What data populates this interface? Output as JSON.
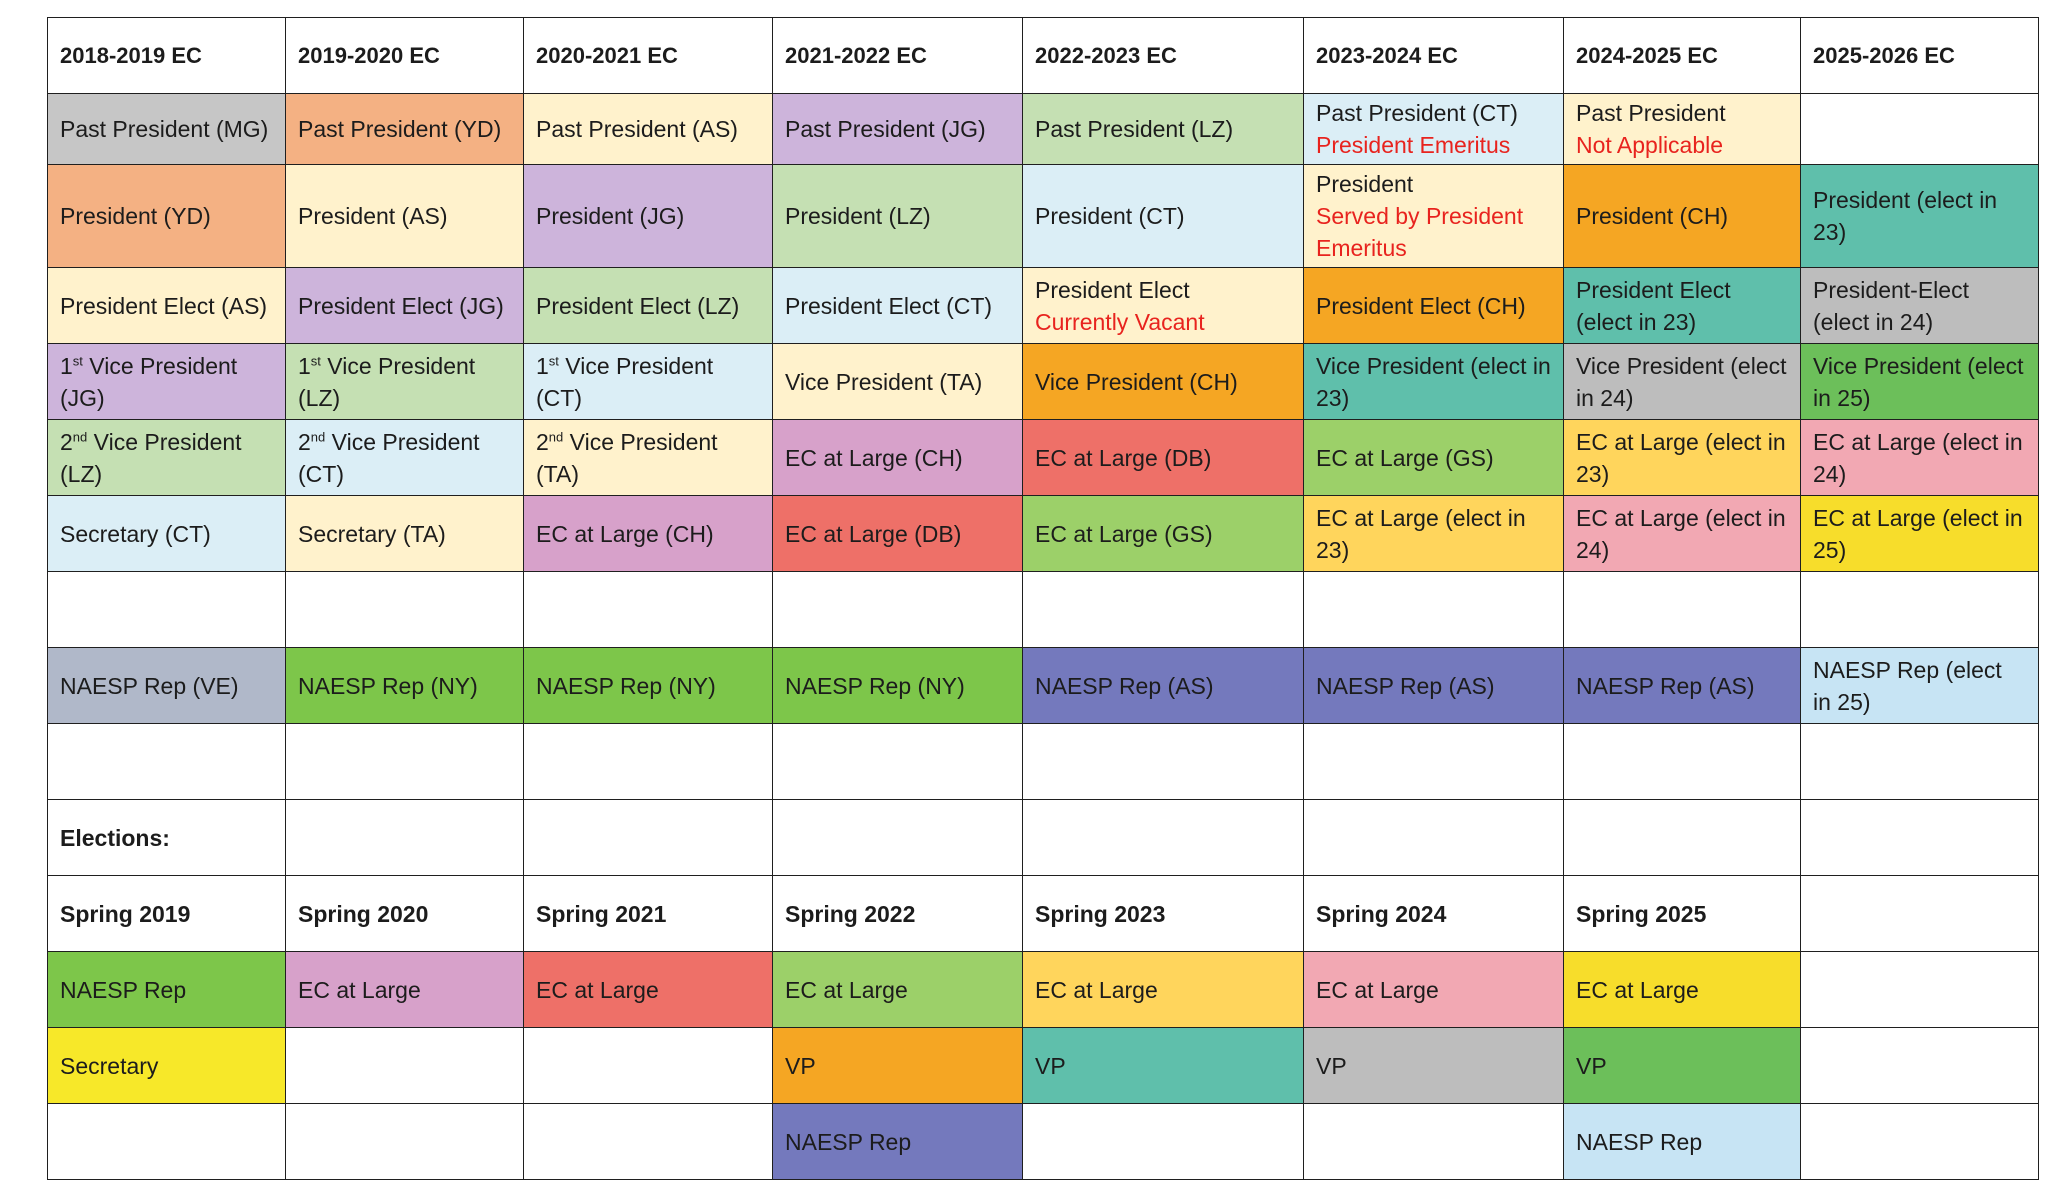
{
  "headers": [
    "2018-2019 EC",
    "2019-2020 EC",
    "2020-2021 EC",
    "2021-2022 EC",
    "2022-2023 EC",
    "2023-2024 EC",
    "2024-2025 EC",
    "2025-2026 EC"
  ],
  "colors": {
    "grey": "#c6c6c6",
    "salmon": "#f4b183",
    "cream": "#fff2cc",
    "purple": "#cdb4db",
    "green": "#c5e0b3",
    "lightblue": "#dbeef6",
    "orange": "#f5a623",
    "teal": "#5fbfab",
    "midgrey": "#bdbdbd",
    "darkgreen": "#6cbf5a",
    "pink": "#d7a1ca",
    "red": "#ee7068",
    "olive": "#9cd069",
    "amber": "#ffd55c",
    "rose": "#f2a8b3",
    "yellow": "#f7dd2b",
    "steel": "#b0b8c9",
    "naesp": "#7479bd",
    "brightgreen": "#7dc64a",
    "sky": "#c7e4f4",
    "white": "#ffffff"
  },
  "rows": [
    [
      {
        "text": "Past President (MG)",
        "bg": "#c6c6c6"
      },
      {
        "text": "Past President (YD)",
        "bg": "#f4b183"
      },
      {
        "text": "Past President (AS)",
        "bg": "#fff2cc"
      },
      {
        "text": "Past President (JG)",
        "bg": "#cdb4db"
      },
      {
        "text": "Past President (LZ)",
        "bg": "#c5e0b3"
      },
      {
        "text": "Past President (CT)",
        "sub": "President Emeritus",
        "bg": "#dbeef6"
      },
      {
        "text": "Past President",
        "sub": "Not Applicable",
        "bg": "#fff2cc"
      },
      {
        "text": "",
        "bg": "#ffffff"
      }
    ],
    [
      {
        "text": "President (YD)",
        "bg": "#f4b183"
      },
      {
        "text": "President (AS)",
        "bg": "#fff2cc"
      },
      {
        "text": "President (JG)",
        "bg": "#cdb4db"
      },
      {
        "text": "President (LZ)",
        "bg": "#c5e0b3"
      },
      {
        "text": "President (CT)",
        "bg": "#dbeef6"
      },
      {
        "text": "President",
        "sub": "Served by President Emeritus",
        "bg": "#fff2cc"
      },
      {
        "text": "President (CH)",
        "bg": "#f5a623"
      },
      {
        "text": "President (elect in 23)",
        "bg": "#5fbfab"
      }
    ],
    [
      {
        "text": "President Elect (AS)",
        "bg": "#fff2cc"
      },
      {
        "text": "President Elect (JG)",
        "bg": "#cdb4db"
      },
      {
        "text": "President Elect (LZ)",
        "bg": "#c5e0b3"
      },
      {
        "text": "President Elect (CT)",
        "bg": "#dbeef6"
      },
      {
        "text": "President Elect",
        "sub": "Currently Vacant",
        "bg": "#fff2cc"
      },
      {
        "text": "President Elect (CH)",
        "bg": "#f5a623"
      },
      {
        "text": "President Elect (elect in 23)",
        "bg": "#5fbfab"
      },
      {
        "text": "President-Elect (elect in 24)",
        "bg": "#bdbdbd"
      }
    ],
    [
      {
        "text": "1",
        "sup": "st",
        "rest": " Vice President (JG)",
        "bg": "#cdb4db"
      },
      {
        "text": "1",
        "sup": "st",
        "rest": " Vice President (LZ)",
        "bg": "#c5e0b3"
      },
      {
        "text": "1",
        "sup": "st",
        "rest": " Vice President (CT)",
        "bg": "#dbeef6"
      },
      {
        "text": "Vice President (TA)",
        "bg": "#fff2cc"
      },
      {
        "text": "Vice President (CH)",
        "bg": "#f5a623"
      },
      {
        "text": "Vice President (elect in 23)",
        "bg": "#5fbfab"
      },
      {
        "text": "Vice President (elect in 24)",
        "bg": "#bdbdbd"
      },
      {
        "text": "Vice President (elect in 25)",
        "bg": "#6cbf5a"
      }
    ],
    [
      {
        "text": "2",
        "sup": "nd",
        "rest": " Vice President (LZ)",
        "bg": "#c5e0b3"
      },
      {
        "text": "2",
        "sup": "nd",
        "rest": " Vice President (CT)",
        "bg": "#dbeef6"
      },
      {
        "text": "2",
        "sup": "nd",
        "rest": " Vice President (TA)",
        "bg": "#fff2cc"
      },
      {
        "text": "EC at Large (CH)",
        "bg": "#d7a1ca"
      },
      {
        "text": "EC at Large (DB)",
        "bg": "#ee7068"
      },
      {
        "text": "EC at Large (GS)",
        "bg": "#9cd069"
      },
      {
        "text": "EC at Large (elect in 23)",
        "bg": "#ffd55c"
      },
      {
        "text": "EC at Large (elect in 24)",
        "bg": "#f2a8b3"
      }
    ],
    [
      {
        "text": "Secretary (CT)",
        "bg": "#dbeef6"
      },
      {
        "text": "Secretary (TA)",
        "bg": "#fff2cc"
      },
      {
        "text": "EC at Large (CH)",
        "bg": "#d7a1ca"
      },
      {
        "text": "EC at Large (DB)",
        "bg": "#ee7068"
      },
      {
        "text": "EC at Large (GS)",
        "bg": "#9cd069"
      },
      {
        "text": "EC at Large (elect in 23)",
        "bg": "#ffd55c"
      },
      {
        "text": "EC at Large (elect in 24)",
        "bg": "#f2a8b3"
      },
      {
        "text": "EC at Large (elect in 25)",
        "bg": "#f7dd2b"
      }
    ],
    [
      {
        "text": "",
        "bg": "#ffffff"
      },
      {
        "text": "",
        "bg": "#ffffff"
      },
      {
        "text": "",
        "bg": "#ffffff"
      },
      {
        "text": "",
        "bg": "#ffffff"
      },
      {
        "text": "",
        "bg": "#ffffff"
      },
      {
        "text": "",
        "bg": "#ffffff"
      },
      {
        "text": "",
        "bg": "#ffffff"
      },
      {
        "text": "",
        "bg": "#ffffff"
      }
    ],
    [
      {
        "text": "NAESP Rep (VE)",
        "bg": "#b0b8c9"
      },
      {
        "text": "NAESP Rep (NY)",
        "bg": "#7dc64a"
      },
      {
        "text": "NAESP Rep (NY)",
        "bg": "#7dc64a"
      },
      {
        "text": "NAESP Rep (NY)",
        "bg": "#7dc64a"
      },
      {
        "text": "NAESP Rep (AS)",
        "bg": "#7479bd"
      },
      {
        "text": "NAESP Rep (AS)",
        "bg": "#7479bd"
      },
      {
        "text": "NAESP Rep (AS)",
        "bg": "#7479bd"
      },
      {
        "text": "NAESP Rep (elect in 25)",
        "bg": "#c7e4f4"
      }
    ],
    [
      {
        "text": "",
        "bg": "#ffffff"
      },
      {
        "text": "",
        "bg": "#ffffff"
      },
      {
        "text": "",
        "bg": "#ffffff"
      },
      {
        "text": "",
        "bg": "#ffffff"
      },
      {
        "text": "",
        "bg": "#ffffff"
      },
      {
        "text": "",
        "bg": "#ffffff"
      },
      {
        "text": "",
        "bg": "#ffffff"
      },
      {
        "text": "",
        "bg": "#ffffff"
      }
    ],
    [
      {
        "text": "Elections:",
        "bg": "#ffffff",
        "bold": true
      },
      {
        "text": "",
        "bg": "#ffffff"
      },
      {
        "text": "",
        "bg": "#ffffff"
      },
      {
        "text": "",
        "bg": "#ffffff"
      },
      {
        "text": "",
        "bg": "#ffffff"
      },
      {
        "text": "",
        "bg": "#ffffff"
      },
      {
        "text": "",
        "bg": "#ffffff"
      },
      {
        "text": "",
        "bg": "#ffffff"
      }
    ],
    [
      {
        "text": "Spring 2019",
        "bg": "#ffffff",
        "bold": true
      },
      {
        "text": "Spring 2020",
        "bg": "#ffffff",
        "bold": true
      },
      {
        "text": "Spring 2021",
        "bg": "#ffffff",
        "bold": true
      },
      {
        "text": "Spring 2022",
        "bg": "#ffffff",
        "bold": true
      },
      {
        "text": "Spring 2023",
        "bg": "#ffffff",
        "bold": true
      },
      {
        "text": "Spring 2024",
        "bg": "#ffffff",
        "bold": true
      },
      {
        "text": "Spring 2025",
        "bg": "#ffffff",
        "bold": true
      },
      {
        "text": "",
        "bg": "#ffffff"
      }
    ],
    [
      {
        "text": "NAESP Rep",
        "bg": "#7dc64a"
      },
      {
        "text": "EC at Large",
        "bg": "#d7a1ca"
      },
      {
        "text": "EC at Large",
        "bg": "#ee7068"
      },
      {
        "text": "EC at Large",
        "bg": "#9cd069"
      },
      {
        "text": "EC at Large",
        "bg": "#ffd55c"
      },
      {
        "text": "EC at Large",
        "bg": "#f2a8b3"
      },
      {
        "text": "EC at Large",
        "bg": "#f7dd2b"
      },
      {
        "text": "",
        "bg": "#ffffff"
      }
    ],
    [
      {
        "text": "Secretary",
        "bg": "#f7e829"
      },
      {
        "text": "",
        "bg": "#ffffff"
      },
      {
        "text": "",
        "bg": "#ffffff"
      },
      {
        "text": "VP",
        "bg": "#f5a623"
      },
      {
        "text": "VP",
        "bg": "#5fbfab"
      },
      {
        "text": "VP",
        "bg": "#bdbdbd"
      },
      {
        "text": "VP",
        "bg": "#6cbf5a"
      },
      {
        "text": "",
        "bg": "#ffffff"
      }
    ],
    [
      {
        "text": "",
        "bg": "#ffffff"
      },
      {
        "text": "",
        "bg": "#ffffff"
      },
      {
        "text": "",
        "bg": "#ffffff"
      },
      {
        "text": "NAESP Rep",
        "bg": "#7479bd"
      },
      {
        "text": "",
        "bg": "#ffffff"
      },
      {
        "text": "",
        "bg": "#ffffff"
      },
      {
        "text": "NAESP Rep",
        "bg": "#c7e4f4"
      },
      {
        "text": "",
        "bg": "#ffffff"
      }
    ]
  ]
}
